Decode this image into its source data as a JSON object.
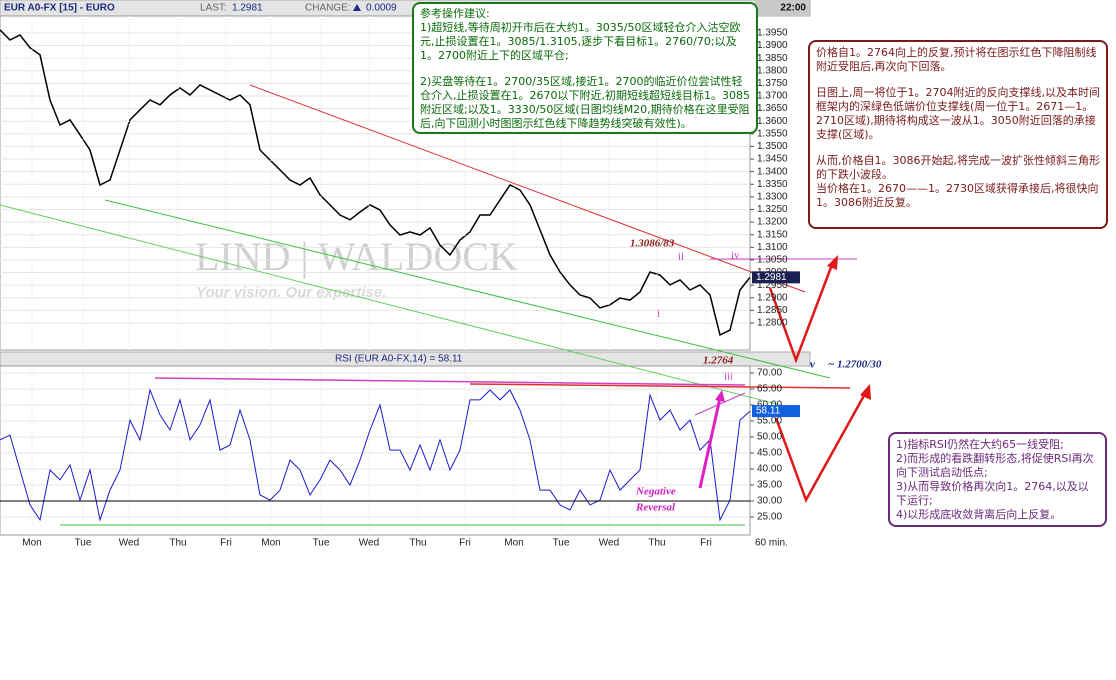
{
  "header": {
    "symbol": "EUR A0-FX [15] - EURO",
    "last_label": "LAST:",
    "last": "1.2981",
    "change_label": "CHANGE:",
    "change": "0.0009",
    "time": "22:00"
  },
  "chart_data": [
    {
      "type": "line",
      "color": "#000000",
      "close_label": "1.2981",
      "x": [
        0,
        1,
        2,
        3,
        4,
        5,
        6,
        7,
        8,
        9,
        10,
        11,
        12,
        13,
        14,
        15,
        16,
        17,
        18,
        19,
        20,
        21,
        22,
        23,
        24,
        25,
        26,
        27,
        28,
        29,
        30,
        31,
        32,
        33,
        34,
        35,
        36,
        37,
        38,
        39,
        40,
        41,
        42,
        43,
        44,
        45,
        46,
        47,
        48,
        49,
        50,
        51,
        52,
        53,
        54,
        55,
        56,
        57,
        58,
        59,
        60,
        61,
        62,
        63,
        64,
        65,
        66,
        67,
        68,
        69,
        70,
        71,
        72,
        73,
        74,
        75
      ],
      "values": [
        1.3962,
        1.3922,
        1.3942,
        1.3891,
        1.3863,
        1.3684,
        1.3585,
        1.3605,
        1.3546,
        1.3486,
        1.3347,
        1.3367,
        1.3486,
        1.3605,
        1.3645,
        1.3684,
        1.3665,
        1.3704,
        1.3732,
        1.3704,
        1.3744,
        1.3724,
        1.3704,
        1.3684,
        1.3704,
        1.3665,
        1.3486,
        1.3446,
        1.3407,
        1.3367,
        1.3347,
        1.3375,
        1.3308,
        1.3268,
        1.3228,
        1.3209,
        1.324,
        1.3268,
        1.3248,
        1.3189,
        1.3149,
        1.3161,
        1.3149,
        1.3177,
        1.3109,
        1.307,
        1.3129,
        1.3161,
        1.3228,
        1.3228,
        1.3288,
        1.3347,
        1.3327,
        1.3268,
        1.3169,
        1.307,
        1.3002,
        1.2951,
        1.2911,
        1.2899,
        1.286,
        1.2872,
        1.2899,
        1.2891,
        1.2923,
        1.3002,
        1.299,
        1.2951,
        1.2971,
        1.2931,
        1.2951,
        1.2911,
        1.2753,
        1.2772,
        1.2931,
        1.2981
      ],
      "xlim": [
        0,
        75
      ],
      "ylim": [
        1.2693,
        1.4017
      ],
      "yticks": [
        {
          "value": 1.395,
          "label": "1.3950"
        },
        {
          "value": 1.39,
          "label": "1.3900"
        },
        {
          "value": 1.385,
          "label": "1.3850"
        },
        {
          "value": 1.38,
          "label": "1.3800"
        },
        {
          "value": 1.375,
          "label": "1.3750"
        },
        {
          "value": 1.37,
          "label": "1.3700"
        },
        {
          "value": 1.365,
          "label": "1.3650"
        },
        {
          "value": 1.36,
          "label": "1.3600"
        },
        {
          "value": 1.355,
          "label": "1.3550"
        },
        {
          "value": 1.35,
          "label": "1.3500"
        },
        {
          "value": 1.345,
          "label": "1.3450"
        },
        {
          "value": 1.34,
          "label": "1.3400"
        },
        {
          "value": 1.335,
          "label": "1.3350"
        },
        {
          "value": 1.33,
          "label": "1.3300"
        },
        {
          "value": 1.325,
          "label": "1.3250"
        },
        {
          "value": 1.32,
          "label": "1.3200"
        },
        {
          "value": 1.315,
          "label": "1.3150"
        },
        {
          "value": 1.31,
          "label": "1.3100"
        },
        {
          "value": 1.305,
          "label": "1.3050"
        },
        {
          "value": 1.3,
          "label": "1.3000"
        },
        {
          "value": 1.295,
          "label": "1.2950"
        },
        {
          "value": 1.29,
          "label": "1.2900"
        },
        {
          "value": 1.285,
          "label": "1.2850"
        },
        {
          "value": 1.28,
          "label": "1.2800"
        }
      ],
      "grid": true
    },
    {
      "type": "line",
      "title": "RSI (EUR A0-FX,14) = 58.11",
      "color": "#1a1acc",
      "close_label": "58.11",
      "x": [
        0,
        1,
        2,
        3,
        4,
        5,
        6,
        7,
        8,
        9,
        10,
        11,
        12,
        13,
        14,
        15,
        16,
        17,
        18,
        19,
        20,
        21,
        22,
        23,
        24,
        25,
        26,
        27,
        28,
        29,
        30,
        31,
        32,
        33,
        34,
        35,
        36,
        37,
        38,
        39,
        40,
        41,
        42,
        43,
        44,
        45,
        46,
        47,
        48,
        49,
        50,
        51,
        52,
        53,
        54,
        55,
        56,
        57,
        58,
        59,
        60,
        61,
        62,
        63,
        64,
        65,
        66,
        67,
        68,
        69,
        70,
        71,
        72,
        73,
        74,
        75
      ],
      "values": [
        49.1,
        50.6,
        39.7,
        28.8,
        24.1,
        39.7,
        36.6,
        41.3,
        30.3,
        39.7,
        24.1,
        33.4,
        39.7,
        55.3,
        49.1,
        64.7,
        56.9,
        52.2,
        61.6,
        49.1,
        53.8,
        61.6,
        45.9,
        47.5,
        58.4,
        49.1,
        31.9,
        30.3,
        33.4,
        42.8,
        39.7,
        31.9,
        36.6,
        42.8,
        39.7,
        35,
        42.8,
        52.2,
        60,
        45.9,
        45.9,
        39.7,
        47.5,
        39.7,
        49.1,
        39.7,
        45.9,
        61.6,
        61.6,
        64.7,
        61.6,
        64.7,
        58.4,
        49.1,
        33.4,
        33.4,
        28.8,
        27.2,
        33.4,
        28.8,
        30.3,
        39.7,
        33.4,
        36.6,
        39.7,
        63.1,
        55.3,
        58.4,
        52.2,
        55.3,
        45.9,
        49.1,
        24.1,
        30.3,
        55.3,
        58.11
      ],
      "xlim": [
        0,
        75
      ],
      "ylim": [
        19.38,
        72.19
      ],
      "yticks": [
        {
          "value": 70,
          "label": "70.00"
        },
        {
          "value": 65,
          "label": "65.00"
        },
        {
          "value": 60,
          "label": "60.00"
        },
        {
          "value": 55,
          "label": "55.00"
        },
        {
          "value": 50,
          "label": "50.00"
        },
        {
          "value": 45,
          "label": "45.00"
        },
        {
          "value": 40,
          "label": "40.00"
        },
        {
          "value": 35,
          "label": "35.00"
        },
        {
          "value": 30,
          "label": "30.00"
        },
        {
          "value": 25,
          "label": "25.00"
        }
      ],
      "xticks": [
        {
          "value": 3.2,
          "label": "Mon"
        },
        {
          "value": 8.3,
          "label": "Tue"
        },
        {
          "value": 12.9,
          "label": "Wed"
        },
        {
          "value": 17.8,
          "label": "Thu"
        },
        {
          "value": 22.6,
          "label": "Fri"
        },
        {
          "value": 27.1,
          "label": "Mon"
        },
        {
          "value": 32.1,
          "label": "Tue"
        },
        {
          "value": 36.9,
          "label": "Wed"
        },
        {
          "value": 41.8,
          "label": "Thu"
        },
        {
          "value": 46.5,
          "label": "Fri"
        },
        {
          "value": 51.4,
          "label": "Mon"
        },
        {
          "value": 56.1,
          "label": "Tue"
        },
        {
          "value": 60.9,
          "label": "Wed"
        },
        {
          "value": 65.7,
          "label": "Thu"
        },
        {
          "value": 70.6,
          "label": "Fri"
        }
      ],
      "timeframe": "60 min.",
      "grid": true
    }
  ],
  "watermark": {
    "brand": "LIND | WALDOCK",
    "slogan": "Your vision. Our expertise."
  },
  "annotations": [
    "1.3086/83",
    "ii",
    "iv",
    "i",
    "1.2764",
    "v",
    "~ 1.2700/30",
    "iii",
    "Negative",
    "Reversal"
  ],
  "notes": [
    {
      "lines": [
        "参考操作建议:",
        "1)超短线,等待周初开市后在大约1。3035/50区域轻仓介入沽空欧元,止损设置在1。3085/1.3105,逐步下看目标1。2760/70;以及1。2700附近上下的区域平仓;",
        "2)买盘等待在1。2700/35区域,接近1。2700的临近价位尝试性轻仓介入,止损设置在1。2670以下附近,初期短线超短线目标1。3085附近区域;以及1。3330/50区域(日图均线M20,期待价格在这里受阻后,向下回测小时图图示红色线下降趋势线突破有效性)。"
      ]
    },
    {
      "lines": [
        "价格自1。2764向上的反复,预计将在图示红色下降阻制线附近受阻后,再次向下回落。",
        "日图上,周一将位于1。2704附近的反向支撑线,以及本时间框架内的深绿色低端价位支撑线(周一位于1。2671—1。2710区域),期待将构成这一波从1。3050附近回落的承接支撑(区域)。",
        "从而,价格自1。3086开始起,将完成一波扩张性倾斜三角形的下跌小波段。",
        "当价格在1。2670——1。2730区域获得承接后,将很快向1。3086附近反复。"
      ]
    },
    {
      "lines": [
        "1)指标RSI仍然在大约65一线受阻;",
        "2)而形成的看跌翻转形态,将促使RSI再次向下测试启动低点;",
        "3)从而导致价格再次向1。2764,以及以下运行;",
        "4)以形成底收敛背离后向上反复。"
      ]
    }
  ]
}
